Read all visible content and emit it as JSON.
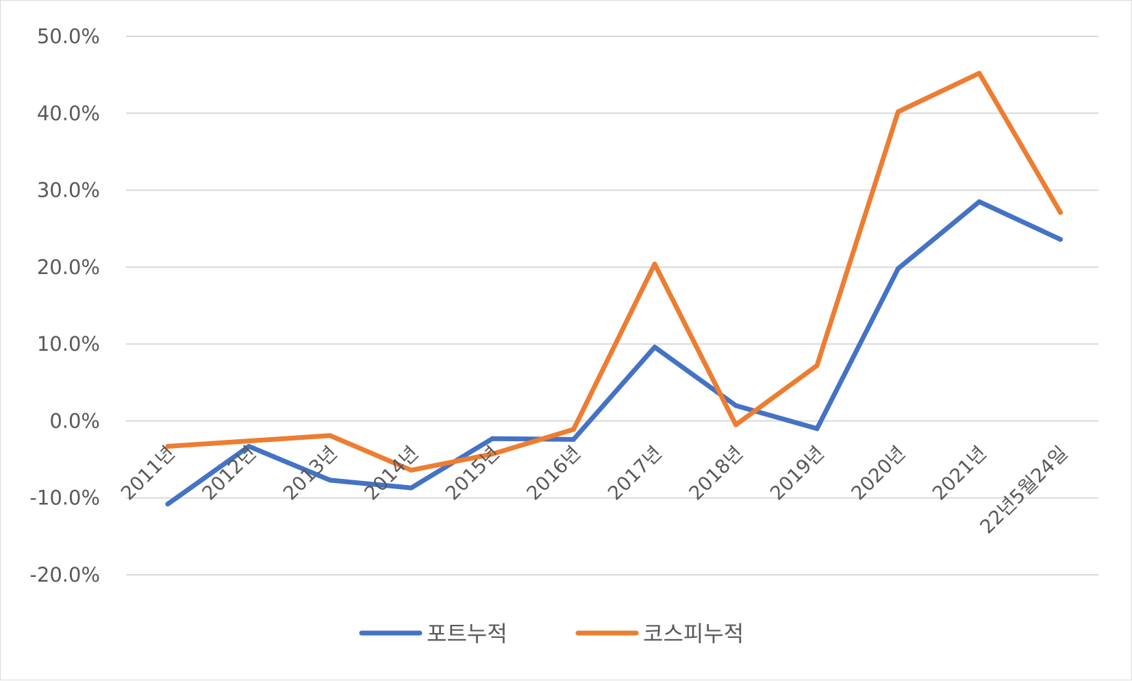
{
  "chart_data": {
    "type": "line",
    "title": "",
    "xlabel": "",
    "ylabel": "",
    "categories": [
      "2011년",
      "2012년",
      "2013년",
      "2014년",
      "2015년",
      "2016년",
      "2017년",
      "2018년",
      "2019년",
      "2020년",
      "2021년",
      "22년5월24일"
    ],
    "ylim": [
      -20,
      50
    ],
    "yticks": [
      -20,
      -10,
      0,
      10,
      20,
      30,
      40,
      50
    ],
    "ytick_labels": [
      "-20.0%",
      "-10.0%",
      "0.0%",
      "10.0%",
      "20.0%",
      "30.0%",
      "40.0%",
      "50.0%"
    ],
    "grid": true,
    "legend_position": "bottom",
    "series": [
      {
        "name": "포트누적",
        "color": "#4472C4",
        "values": [
          -10.8,
          -3.3,
          -7.7,
          -8.7,
          -2.3,
          -2.4,
          9.6,
          2.0,
          -1.0,
          19.8,
          28.5,
          23.6
        ]
      },
      {
        "name": "코스피누적",
        "color": "#ED7D31",
        "values": [
          -3.3,
          -2.6,
          -1.9,
          -6.4,
          -4.3,
          -1.1,
          20.4,
          -0.5,
          7.2,
          40.2,
          45.2,
          27.1
        ]
      }
    ]
  }
}
